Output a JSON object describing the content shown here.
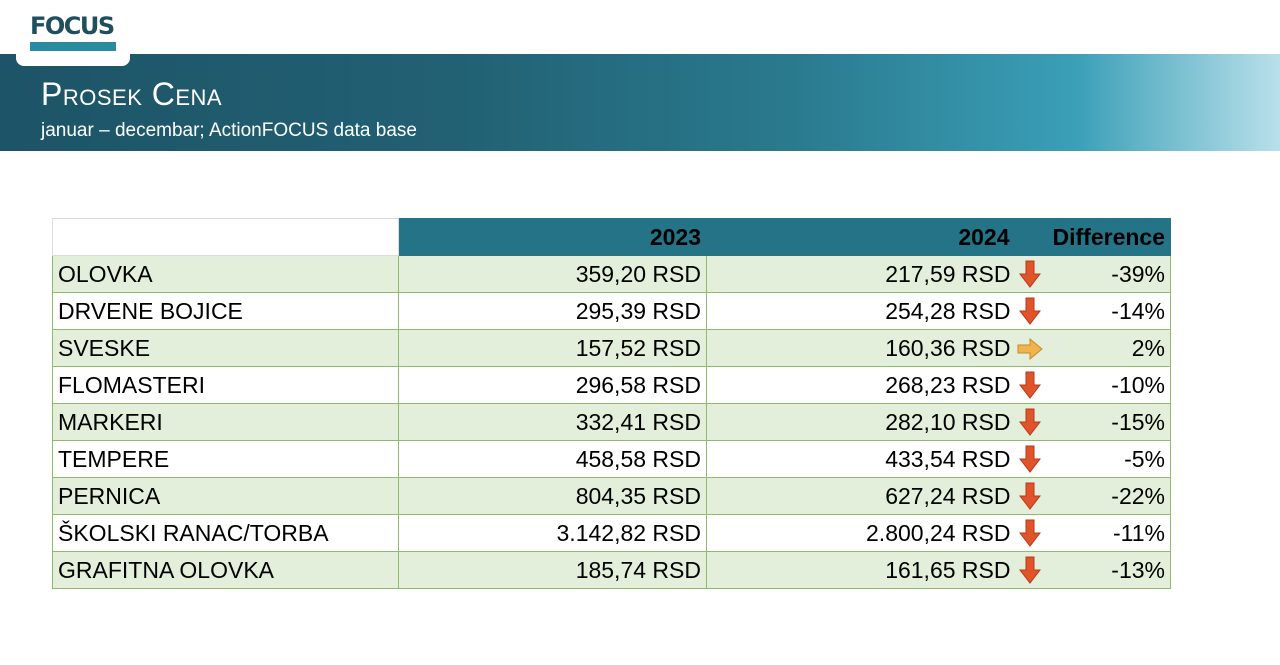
{
  "logo": {
    "text": "FOCUS"
  },
  "header": {
    "title": "Prosek Cena",
    "subtitle": "januar – decembar; ActionFOCUS data base"
  },
  "table": {
    "columns": [
      "",
      "2023",
      "2024",
      "Difference"
    ],
    "rows": [
      {
        "item": "OLOVKA",
        "y2023": "359,20 RSD",
        "y2024": "217,59 RSD",
        "trend": "down-arrow-icon",
        "diff": "-39%"
      },
      {
        "item": "DRVENE BOJICE",
        "y2023": "295,39 RSD",
        "y2024": "254,28 RSD",
        "trend": "down-arrow-icon",
        "diff": "-14%"
      },
      {
        "item": "SVESKE",
        "y2023": "157,52 RSD",
        "y2024": "160,36 RSD",
        "trend": "right-arrow-icon",
        "diff": "2%"
      },
      {
        "item": "FLOMASTERI",
        "y2023": "296,58 RSD",
        "y2024": "268,23 RSD",
        "trend": "down-arrow-icon",
        "diff": "-10%"
      },
      {
        "item": "MARKERI",
        "y2023": "332,41 RSD",
        "y2024": "282,10 RSD",
        "trend": "down-arrow-icon",
        "diff": "-15%"
      },
      {
        "item": "TEMPERE",
        "y2023": "458,58 RSD",
        "y2024": "433,54 RSD",
        "trend": "down-arrow-icon",
        "diff": "-5%"
      },
      {
        "item": "PERNICA",
        "y2023": "804,35 RSD",
        "y2024": "627,24 RSD",
        "trend": "down-arrow-icon",
        "diff": "-22%"
      },
      {
        "item": "ŠKOLSKI RANAC/TORBA",
        "y2023": "3.142,82 RSD",
        "y2024": "2.800,24 RSD",
        "trend": "down-arrow-icon",
        "diff": "-11%"
      },
      {
        "item": "GRAFITNA OLOVKA",
        "y2023": "185,74 RSD",
        "y2024": "161,65 RSD",
        "trend": "down-arrow-icon",
        "diff": "-13%"
      }
    ]
  },
  "colors": {
    "header_band": "#226073",
    "table_header": "#247386",
    "row_alt": "#e3efda",
    "row_border": "#8fbc6a",
    "down_arrow": "#e0542b",
    "right_arrow": "#f2b24e"
  }
}
